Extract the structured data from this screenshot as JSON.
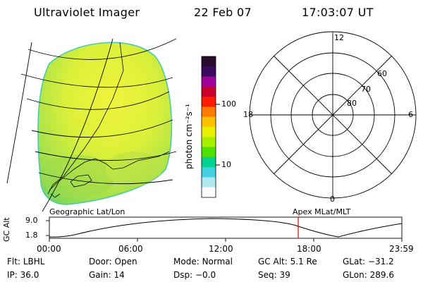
{
  "header": {
    "instrument": "Ultraviolet Imager",
    "date": "22 Feb 07",
    "time": "17:03:07 UT"
  },
  "colorbar": {
    "unit_label": "photon cm⁻²s⁻¹",
    "ticks": [
      "100",
      "10"
    ],
    "colors": [
      "#2a0a2a",
      "#3b0a5e",
      "#a0009a",
      "#c8002a",
      "#ff1a00",
      "#ff7a00",
      "#ffc000",
      "#e8f000",
      "#a8f000",
      "#4ee000",
      "#00d090",
      "#40d0e0",
      "#b0e8f0",
      "#ffffff"
    ]
  },
  "polar": {
    "mlt_labels": {
      "top": "12",
      "left": "18",
      "right": "6",
      "bottom": "0"
    },
    "lat_labels": [
      "60",
      "70",
      "80"
    ]
  },
  "orbit": {
    "left_label": "Geographic Lat/Lon",
    "right_label": "Apex MLat/MLT",
    "axis_label": "GC Alt",
    "y_ticks": [
      "9.0",
      "1.8"
    ],
    "x_ticks": [
      "00:00",
      "06:00",
      "12:00",
      "18:00",
      "23:59"
    ],
    "marker_time": "17:03"
  },
  "footer": {
    "row1": [
      {
        "label": "Flt:",
        "value": "LBHL"
      },
      {
        "label": "Door:",
        "value": "Open"
      },
      {
        "label": "Mode:",
        "value": "Normal"
      },
      {
        "label": "GC Alt:",
        "value": "5.1 Re"
      },
      {
        "label": "GLat:",
        "value": "−31.2"
      }
    ],
    "row2": [
      {
        "label": "IP:",
        "value": "36.0"
      },
      {
        "label": "Gain:",
        "value": "14"
      },
      {
        "label": "Dsp:",
        "value": "−0.0"
      },
      {
        "label": "Seq:",
        "value": "39"
      },
      {
        "label": "GLon:",
        "value": "289.6"
      }
    ]
  }
}
